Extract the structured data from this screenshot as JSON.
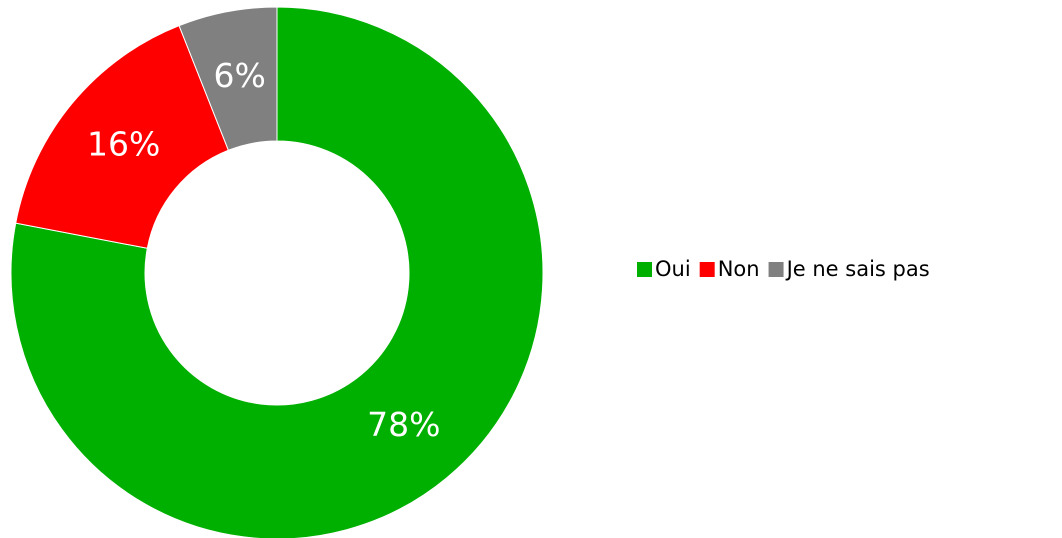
{
  "chart_data": {
    "type": "donut",
    "categories": [
      "Oui",
      "Non",
      "Je ne sais pas"
    ],
    "values": [
      78,
      16,
      6
    ],
    "value_labels": [
      "78%",
      "16%",
      "6%"
    ],
    "colors": [
      "#00b000",
      "#ff0000",
      "#808080"
    ],
    "legend": "right"
  }
}
